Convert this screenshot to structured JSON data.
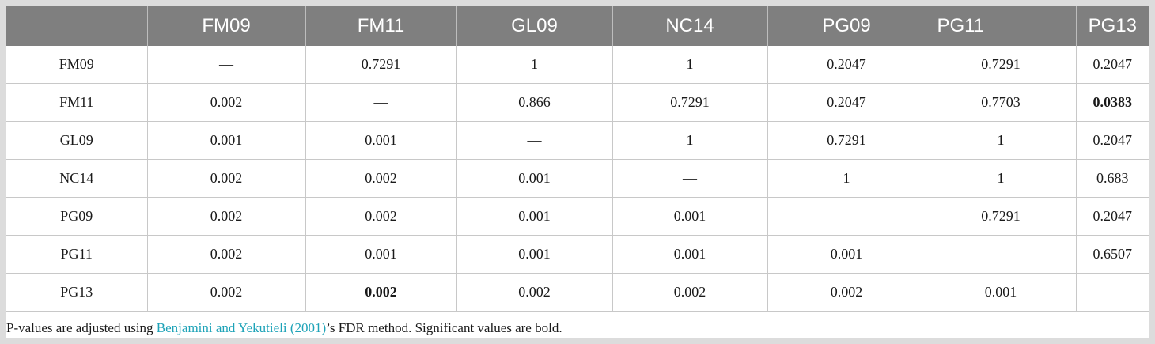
{
  "table": {
    "headers": [
      "",
      "FM09",
      "FM11",
      "GL09",
      "NC14",
      "PG09",
      "PG11",
      "PG13"
    ],
    "rows": [
      {
        "label": "FM09",
        "cells": [
          "—",
          "0.7291",
          "1",
          "1",
          "0.2047",
          "0.7291",
          "0.2047"
        ],
        "bold": []
      },
      {
        "label": "FM11",
        "cells": [
          "0.002",
          "—",
          "0.866",
          "0.7291",
          "0.2047",
          "0.7703",
          "0.0383"
        ],
        "bold": [
          6
        ]
      },
      {
        "label": "GL09",
        "cells": [
          "0.001",
          "0.001",
          "—",
          "1",
          "0.7291",
          "1",
          "0.2047"
        ],
        "bold": []
      },
      {
        "label": "NC14",
        "cells": [
          "0.002",
          "0.002",
          "0.001",
          "—",
          "1",
          "1",
          "0.683"
        ],
        "bold": []
      },
      {
        "label": "PG09",
        "cells": [
          "0.002",
          "0.002",
          "0.001",
          "0.001",
          "—",
          "0.7291",
          "0.2047"
        ],
        "bold": []
      },
      {
        "label": "PG11",
        "cells": [
          "0.002",
          "0.001",
          "0.001",
          "0.001",
          "0.001",
          "—",
          "0.6507"
        ],
        "bold": []
      },
      {
        "label": "PG13",
        "cells": [
          "0.002",
          "0.002",
          "0.002",
          "0.002",
          "0.002",
          "0.001",
          "—"
        ],
        "bold": [
          1
        ]
      }
    ]
  },
  "note": {
    "prefix": "P-values are adjusted using ",
    "link_text": "Benjamini and Yekutieli (2001)",
    "suffix": "’s FDR method. Significant values are bold."
  },
  "colors": {
    "header_bg": "#7f7f7f",
    "header_text": "#ffffff",
    "link": "#1ea3b8",
    "page_bg": "#dcdcdc"
  }
}
